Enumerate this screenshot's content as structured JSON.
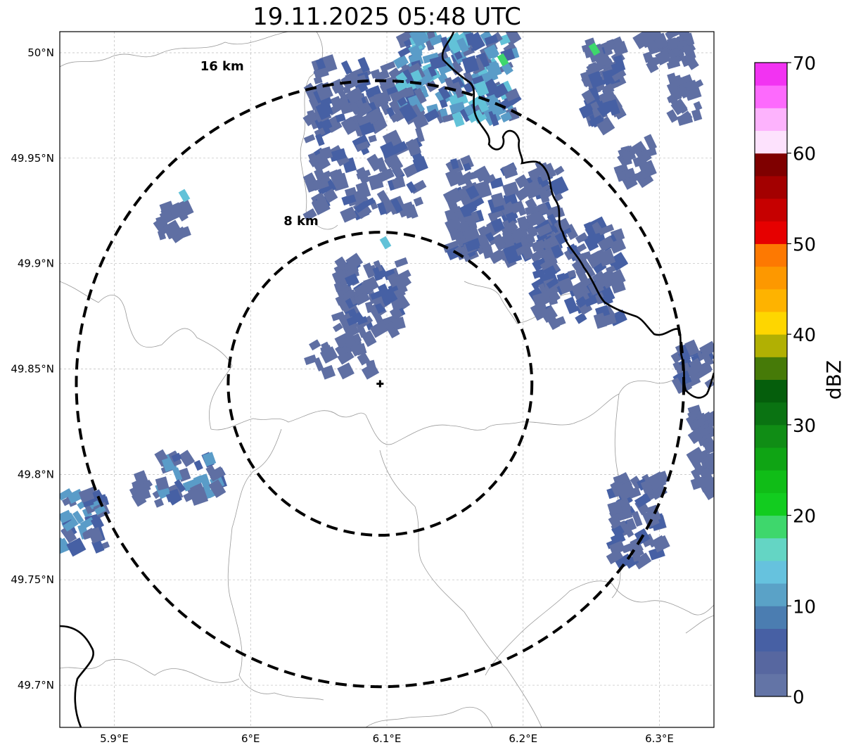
{
  "title": "19.11.2025 05:48 UTC",
  "map": {
    "lon_range": [
      5.86,
      6.34
    ],
    "lat_range": [
      49.68,
      50.01
    ],
    "lon_ticks": [
      {
        "value": 5.9,
        "label": "5.9°E"
      },
      {
        "value": 6.0,
        "label": "6°E"
      },
      {
        "value": 6.1,
        "label": "6.1°E"
      },
      {
        "value": 6.2,
        "label": "6.2°E"
      },
      {
        "value": 6.3,
        "label": "6.3°E"
      }
    ],
    "lat_ticks": [
      {
        "value": 50.0,
        "label": "50°N"
      },
      {
        "value": 49.95,
        "label": "49.95°N"
      },
      {
        "value": 49.9,
        "label": "49.9°N"
      },
      {
        "value": 49.85,
        "label": "49.85°N"
      },
      {
        "value": 49.8,
        "label": "49.8°N"
      },
      {
        "value": 49.75,
        "label": "49.75°N"
      },
      {
        "value": 49.7,
        "label": "49.7°N"
      }
    ],
    "radar_site": {
      "lon": 6.095,
      "lat": 49.843
    },
    "range_rings": [
      {
        "label": "8 km",
        "radius_km": 8
      },
      {
        "label": "16 km",
        "radius_km": 16
      }
    ]
  },
  "colorbar": {
    "label": "dBZ",
    "min": 0,
    "max": 70,
    "step": 2.5,
    "ticks": [
      0,
      10,
      20,
      30,
      40,
      50,
      60,
      70
    ],
    "colors": [
      "#6374a6",
      "#5767a0",
      "#4760a4",
      "#4b7db1",
      "#5aa2c7",
      "#66c2de",
      "#64d5c4",
      "#3ed76c",
      "#12cc1f",
      "#10bd17",
      "#0fa414",
      "#108d15",
      "#0a7312",
      "#055e0c",
      "#467a08",
      "#b1b003",
      "#fed600",
      "#feb300",
      "#fd9800",
      "#fd7902",
      "#e60000",
      "#c60000",
      "#a30000",
      "#7f0000",
      "#fde2fd",
      "#fdb3fd",
      "#fd6afd",
      "#f233f2"
    ]
  },
  "echo_colors": {
    "main": "#5f6fa3",
    "dark": "#4660a4",
    "mid": "#5a9cc8",
    "light": "#62c2d8",
    "green": "#3ed76c"
  }
}
